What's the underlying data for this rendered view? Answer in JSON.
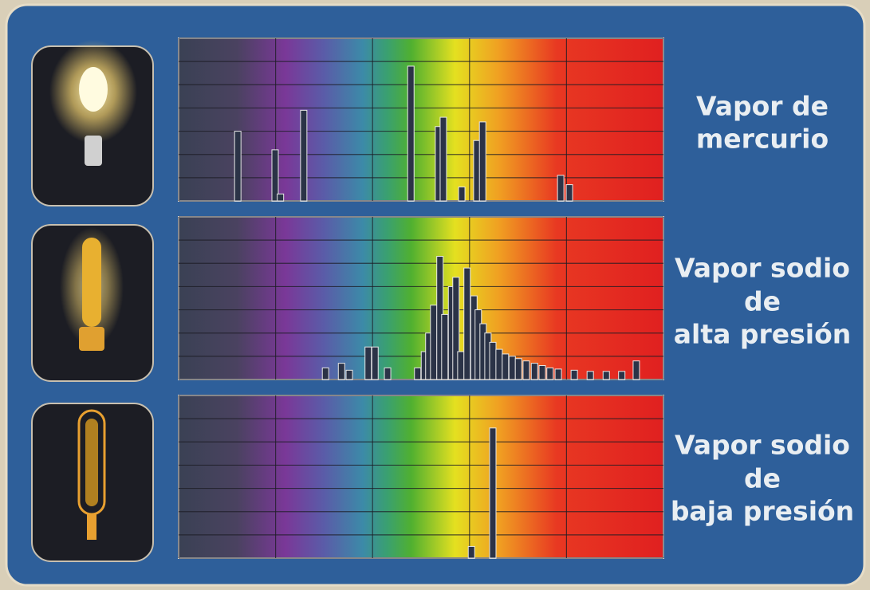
{
  "chart_data": [
    {
      "type": "bar",
      "title": [
        "Vapor de",
        "mercurio"
      ],
      "x": [
        12.2,
        19.9,
        21.0,
        25.8,
        47.9,
        53.6,
        54.6,
        58.4,
        61.5,
        62.7,
        78.8,
        80.6
      ],
      "values": [
        3.0,
        2.2,
        0.3,
        3.9,
        5.8,
        3.2,
        3.6,
        0.6,
        2.6,
        3.4,
        1.1,
        0.7
      ],
      "color": "#2b3347",
      "xlim": [
        0,
        100
      ],
      "ylim": [
        0,
        7
      ],
      "xticks": [
        0,
        20,
        40,
        60,
        80,
        100
      ],
      "yticks": [
        0,
        1,
        2,
        3,
        4,
        5,
        6,
        7
      ],
      "grid": true
    },
    {
      "type": "bar",
      "title": [
        "Vapor sodio",
        "de",
        "alta presión"
      ],
      "x": [
        30.3,
        33.6,
        35.2,
        39.1,
        40.5,
        43.1,
        49.3,
        50.7,
        51.6,
        52.6,
        53.9,
        54.9,
        56.3,
        57.2,
        58.2,
        59.5,
        60.9,
        61.8,
        62.8,
        63.8,
        64.8,
        66.1,
        67.4,
        68.8,
        70.1,
        71.7,
        73.4,
        75.0,
        76.6,
        78.3,
        81.6,
        84.9,
        88.2,
        91.4,
        94.4
      ],
      "values": [
        0.5,
        0.7,
        0.4,
        1.4,
        1.4,
        0.5,
        0.5,
        1.2,
        2.0,
        3.2,
        5.3,
        2.8,
        4.0,
        4.4,
        1.2,
        4.8,
        3.6,
        3.0,
        2.4,
        2.0,
        1.6,
        1.3,
        1.1,
        1.0,
        0.9,
        0.8,
        0.7,
        0.6,
        0.5,
        0.45,
        0.4,
        0.35,
        0.35,
        0.35,
        0.8
      ],
      "color": "#2b3347",
      "xlim": [
        0,
        100
      ],
      "ylim": [
        0,
        7
      ],
      "xticks": [
        0,
        20,
        40,
        60,
        80,
        100
      ],
      "yticks": [
        0,
        1,
        2,
        3,
        4,
        5,
        6,
        7
      ],
      "grid": true
    },
    {
      "type": "bar",
      "title": [
        "Vapor sodio",
        "de",
        "baja presión"
      ],
      "x": [
        60.4,
        64.8
      ],
      "values": [
        0.5,
        5.6
      ],
      "color": "#2b3347",
      "xlim": [
        0,
        100
      ],
      "ylim": [
        0,
        7
      ],
      "xticks": [
        0,
        20,
        40,
        60,
        80,
        100
      ],
      "yticks": [
        0,
        1,
        2,
        3,
        4,
        5,
        6,
        7
      ],
      "grid": true
    }
  ]
}
